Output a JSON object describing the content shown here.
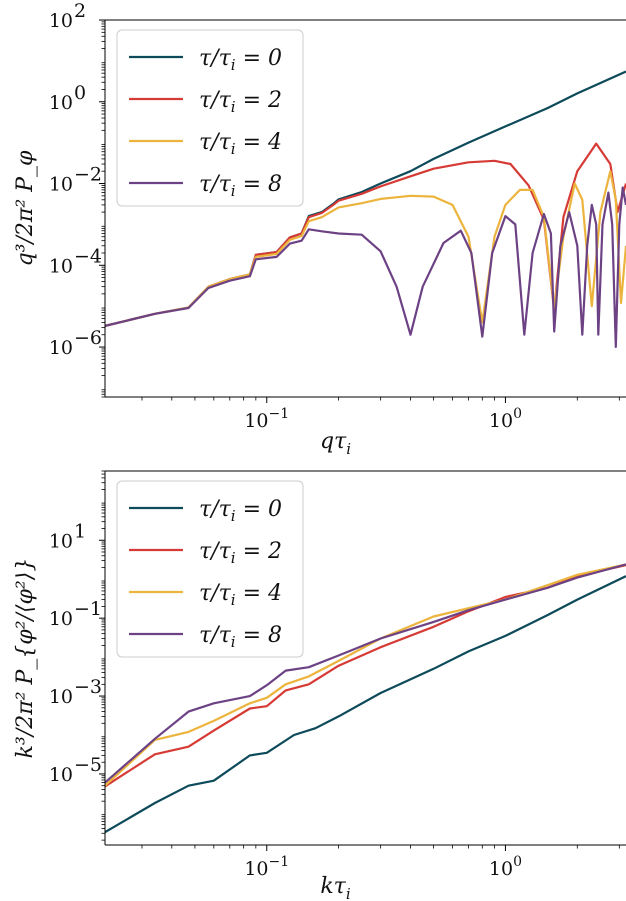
{
  "chart_data": [
    {
      "type": "line",
      "xlabel": "qτ_i",
      "ylabel": "q³/2π² P_φ",
      "x_scale": "log",
      "y_scale": "log",
      "xlim": [
        0.021,
        3.2
      ],
      "ylim": [
        6e-08,
        100
      ],
      "x_ticks": [
        {
          "value": 0.1,
          "label": "10",
          "exp": "−1"
        },
        {
          "value": 1,
          "label": "10",
          "exp": "0"
        }
      ],
      "y_ticks": [
        {
          "value": 1e-06,
          "label": "10",
          "exp": "−6"
        },
        {
          "value": 0.0001,
          "label": "10",
          "exp": "−4"
        },
        {
          "value": 0.01,
          "label": "10",
          "exp": "−2"
        },
        {
          "value": 1,
          "label": "10",
          "exp": "0"
        },
        {
          "value": 100,
          "label": "10",
          "exp": "2"
        }
      ],
      "legend_position": "top-left",
      "series": [
        {
          "name": "τ/τ_i = 0",
          "color": "#0d4a5a",
          "points": [
            [
              0.021,
              3.3e-06
            ],
            [
              0.034,
              6.5e-06
            ],
            [
              0.047,
              9.2e-06
            ],
            [
              0.057,
              3e-05
            ],
            [
              0.07,
              4.6e-05
            ],
            [
              0.085,
              6e-05
            ],
            [
              0.09,
              0.00018
            ],
            [
              0.11,
              0.00021
            ],
            [
              0.125,
              0.00048
            ],
            [
              0.14,
              0.0006
            ],
            [
              0.15,
              0.0016
            ],
            [
              0.17,
              0.002
            ],
            [
              0.19,
              0.0032
            ],
            [
              0.2,
              0.0041
            ],
            [
              0.25,
              0.0062
            ],
            [
              0.3,
              0.01
            ],
            [
              0.4,
              0.02
            ],
            [
              0.5,
              0.04
            ],
            [
              0.7,
              0.1
            ],
            [
              1.0,
              0.25
            ],
            [
              1.5,
              0.7
            ],
            [
              2.0,
              1.6
            ],
            [
              3.2,
              5.5
            ]
          ]
        },
        {
          "name": "τ/τ_i = 2",
          "color": "#d63a35",
          "points": [
            [
              0.021,
              3.3e-06
            ],
            [
              0.034,
              6.5e-06
            ],
            [
              0.047,
              9.2e-06
            ],
            [
              0.057,
              3e-05
            ],
            [
              0.07,
              4.6e-05
            ],
            [
              0.085,
              6e-05
            ],
            [
              0.09,
              0.00018
            ],
            [
              0.11,
              0.00021
            ],
            [
              0.125,
              0.00048
            ],
            [
              0.14,
              0.0006
            ],
            [
              0.15,
              0.0015
            ],
            [
              0.17,
              0.0019
            ],
            [
              0.19,
              0.003
            ],
            [
              0.2,
              0.0038
            ],
            [
              0.25,
              0.0056
            ],
            [
              0.3,
              0.0085
            ],
            [
              0.4,
              0.015
            ],
            [
              0.5,
              0.023
            ],
            [
              0.7,
              0.033
            ],
            [
              0.9,
              0.036
            ],
            [
              1.05,
              0.03
            ],
            [
              1.25,
              0.009
            ],
            [
              1.45,
              0.0013
            ],
            [
              1.6,
              8e-06
            ],
            [
              1.75,
              0.0015
            ],
            [
              2.0,
              0.02
            ],
            [
              2.4,
              0.095
            ],
            [
              2.75,
              0.03
            ],
            [
              2.95,
              0.002
            ],
            [
              3.2,
              0.01
            ]
          ]
        },
        {
          "name": "τ/τ_i = 4",
          "color": "#ecb43d",
          "points": [
            [
              0.021,
              3.3e-06
            ],
            [
              0.034,
              6.5e-06
            ],
            [
              0.047,
              9.2e-06
            ],
            [
              0.057,
              3e-05
            ],
            [
              0.07,
              4.6e-05
            ],
            [
              0.085,
              6e-05
            ],
            [
              0.09,
              0.00016
            ],
            [
              0.11,
              0.00019
            ],
            [
              0.125,
              0.00042
            ],
            [
              0.14,
              0.00052
            ],
            [
              0.15,
              0.0012
            ],
            [
              0.17,
              0.0015
            ],
            [
              0.19,
              0.0022
            ],
            [
              0.2,
              0.0026
            ],
            [
              0.25,
              0.0033
            ],
            [
              0.3,
              0.0042
            ],
            [
              0.4,
              0.005
            ],
            [
              0.5,
              0.0048
            ],
            [
              0.6,
              0.003
            ],
            [
              0.7,
              0.0005
            ],
            [
              0.8,
              4e-06
            ],
            [
              0.9,
              0.0005
            ],
            [
              1.0,
              0.003
            ],
            [
              1.15,
              0.007
            ],
            [
              1.3,
              0.007
            ],
            [
              1.45,
              0.0015
            ],
            [
              1.6,
              9e-06
            ],
            [
              1.75,
              0.0005
            ],
            [
              1.95,
              0.01
            ],
            [
              2.1,
              0.004
            ],
            [
              2.3,
              1e-05
            ],
            [
              2.5,
              0.002
            ],
            [
              2.75,
              0.02
            ],
            [
              2.9,
              0.004
            ],
            [
              3.05,
              1.2e-05
            ],
            [
              3.2,
              0.0003
            ]
          ]
        },
        {
          "name": "τ/τ_i = 8",
          "color": "#6d4285",
          "points": [
            [
              0.021,
              3.3e-06
            ],
            [
              0.034,
              6.5e-06
            ],
            [
              0.047,
              9e-06
            ],
            [
              0.057,
              2.8e-05
            ],
            [
              0.07,
              4.2e-05
            ],
            [
              0.085,
              5.4e-05
            ],
            [
              0.09,
              0.00014
            ],
            [
              0.11,
              0.00016
            ],
            [
              0.125,
              0.00034
            ],
            [
              0.14,
              0.0004
            ],
            [
              0.15,
              0.00076
            ],
            [
              0.17,
              0.00068
            ],
            [
              0.2,
              0.0006
            ],
            [
              0.25,
              0.00056
            ],
            [
              0.3,
              0.00022
            ],
            [
              0.35,
              3e-05
            ],
            [
              0.4,
              2e-06
            ],
            [
              0.45,
              3e-05
            ],
            [
              0.55,
              0.00035
            ],
            [
              0.65,
              0.0007
            ],
            [
              0.72,
              0.0002
            ],
            [
              0.8,
              1.8e-06
            ],
            [
              0.88,
              0.0002
            ],
            [
              1.0,
              0.0016
            ],
            [
              1.1,
              0.001
            ],
            [
              1.2,
              2e-06
            ],
            [
              1.3,
              0.0002
            ],
            [
              1.45,
              0.0018
            ],
            [
              1.55,
              0.0006
            ],
            [
              1.6,
              2.4e-06
            ],
            [
              1.7,
              0.0003
            ],
            [
              1.85,
              0.002
            ],
            [
              2.0,
              0.0003
            ],
            [
              2.1,
              2e-06
            ],
            [
              2.2,
              0.0003
            ],
            [
              2.3,
              0.003
            ],
            [
              2.4,
              0.001
            ],
            [
              2.45,
              2e-06
            ],
            [
              2.55,
              0.001
            ],
            [
              2.7,
              0.006
            ],
            [
              2.8,
              0.001
            ],
            [
              2.9,
              1e-06
            ],
            [
              3.0,
              0.001
            ],
            [
              3.1,
              0.008
            ],
            [
              3.2,
              0.003
            ]
          ]
        }
      ]
    },
    {
      "type": "line",
      "xlabel": "kτ_i",
      "ylabel": "k³/2π² P_{φ²/⟨φ²⟩}",
      "x_scale": "log",
      "y_scale": "log",
      "xlim": [
        0.021,
        3.2
      ],
      "ylim": [
        1.5e-07,
        600
      ],
      "x_ticks": [
        {
          "value": 0.1,
          "label": "10",
          "exp": "−1"
        },
        {
          "value": 1,
          "label": "10",
          "exp": "0"
        }
      ],
      "y_ticks": [
        {
          "value": 1e-05,
          "label": "10",
          "exp": "−5"
        },
        {
          "value": 0.001,
          "label": "10",
          "exp": "−3"
        },
        {
          "value": 0.1,
          "label": "10",
          "exp": "−1"
        },
        {
          "value": 10,
          "label": "10",
          "exp": "1"
        }
      ],
      "legend_position": "top-left",
      "series": [
        {
          "name": "τ/τ_i = 0",
          "color": "#0d4a5a",
          "points": [
            [
              0.021,
              3.2e-07
            ],
            [
              0.034,
              1.8e-06
            ],
            [
              0.047,
              5e-06
            ],
            [
              0.06,
              6.7e-06
            ],
            [
              0.085,
              3e-05
            ],
            [
              0.1,
              3.5e-05
            ],
            [
              0.13,
              0.0001
            ],
            [
              0.16,
              0.00015
            ],
            [
              0.2,
              0.0003
            ],
            [
              0.3,
              0.0012
            ],
            [
              0.5,
              0.005
            ],
            [
              0.7,
              0.014
            ],
            [
              1.0,
              0.035
            ],
            [
              1.5,
              0.12
            ],
            [
              2.0,
              0.3
            ],
            [
              3.2,
              1.2
            ]
          ]
        },
        {
          "name": "τ/τ_i = 2",
          "color": "#d63a35",
          "points": [
            [
              0.021,
              4.8e-06
            ],
            [
              0.034,
              3.2e-05
            ],
            [
              0.047,
              5e-05
            ],
            [
              0.06,
              0.00013
            ],
            [
              0.085,
              0.00048
            ],
            [
              0.1,
              0.00055
            ],
            [
              0.12,
              0.0014
            ],
            [
              0.15,
              0.002
            ],
            [
              0.2,
              0.006
            ],
            [
              0.3,
              0.018
            ],
            [
              0.5,
              0.06
            ],
            [
              0.7,
              0.15
            ],
            [
              1.0,
              0.35
            ],
            [
              1.5,
              0.6
            ],
            [
              2.0,
              1.2
            ],
            [
              3.2,
              2.3
            ]
          ]
        },
        {
          "name": "τ/τ_i = 4",
          "color": "#ecb43d",
          "points": [
            [
              0.021,
              5e-06
            ],
            [
              0.034,
              7.5e-05
            ],
            [
              0.047,
              0.00012
            ],
            [
              0.06,
              0.00023
            ],
            [
              0.085,
              0.00065
            ],
            [
              0.1,
              0.0009
            ],
            [
              0.12,
              0.002
            ],
            [
              0.15,
              0.0032
            ],
            [
              0.2,
              0.008
            ],
            [
              0.3,
              0.03
            ],
            [
              0.5,
              0.11
            ],
            [
              0.7,
              0.18
            ],
            [
              1.0,
              0.3
            ],
            [
              1.5,
              0.7
            ],
            [
              2.0,
              1.3
            ],
            [
              3.2,
              2.4
            ]
          ]
        },
        {
          "name": "τ/τ_i = 8",
          "color": "#6d4285",
          "points": [
            [
              0.021,
              6e-06
            ],
            [
              0.034,
              8e-05
            ],
            [
              0.047,
              0.0004
            ],
            [
              0.06,
              0.00065
            ],
            [
              0.085,
              0.001
            ],
            [
              0.1,
              0.0019
            ],
            [
              0.12,
              0.0045
            ],
            [
              0.15,
              0.0055
            ],
            [
              0.2,
              0.011
            ],
            [
              0.3,
              0.03
            ],
            [
              0.5,
              0.08
            ],
            [
              0.7,
              0.16
            ],
            [
              1.0,
              0.3
            ],
            [
              1.5,
              0.6
            ],
            [
              2.0,
              1.1
            ],
            [
              3.2,
              2.4
            ]
          ]
        }
      ]
    }
  ]
}
